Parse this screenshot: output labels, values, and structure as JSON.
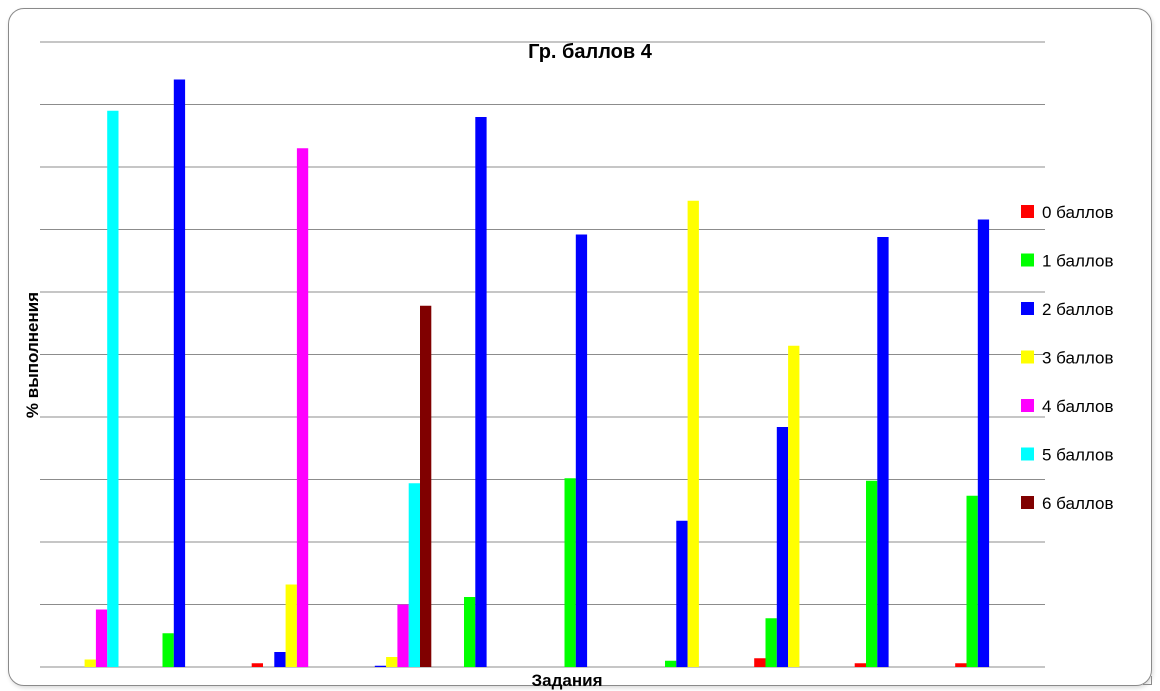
{
  "chart_data": {
    "type": "bar",
    "title": "Гр. баллов 4",
    "xlabel": "Задания",
    "ylabel": "% выполнения",
    "ylim": [
      0,
      100
    ],
    "grid": true,
    "y_tick_labels_visible": false,
    "x_tick_labels_visible": false,
    "legend_position": "right",
    "group_count": 10,
    "series": [
      {
        "name": "0 баллов",
        "color": "#ff0000",
        "values": [
          0,
          0,
          0.6,
          0,
          0,
          0,
          0,
          1.4,
          0.6,
          0.6
        ]
      },
      {
        "name": "1 баллов",
        "color": "#00ff00",
        "values": [
          0,
          5.4,
          0,
          0,
          11.2,
          30.2,
          1,
          7.8,
          29.8,
          27.4
        ]
      },
      {
        "name": "2 баллов",
        "color": "#0000ff",
        "values": [
          0,
          94,
          2.4,
          0.2,
          88,
          69.2,
          23.4,
          38.4,
          68.8,
          71.6
        ]
      },
      {
        "name": "3 баллов",
        "color": "#ffff00",
        "values": [
          1.2,
          0,
          13.2,
          1.6,
          0,
          0,
          74.6,
          51.4,
          0,
          0
        ]
      },
      {
        "name": "4 баллов",
        "color": "#ff00ff",
        "values": [
          9.2,
          0,
          83,
          10,
          0,
          0,
          0,
          0,
          0,
          0
        ]
      },
      {
        "name": "5 баллов",
        "color": "#00ffff",
        "values": [
          89,
          0,
          0,
          29.4,
          0,
          0,
          0,
          0,
          0,
          0
        ]
      },
      {
        "name": "6 баллов",
        "color": "#800000",
        "values": [
          0,
          0,
          0,
          57.8,
          0,
          0,
          0,
          0,
          0,
          0
        ]
      }
    ]
  }
}
